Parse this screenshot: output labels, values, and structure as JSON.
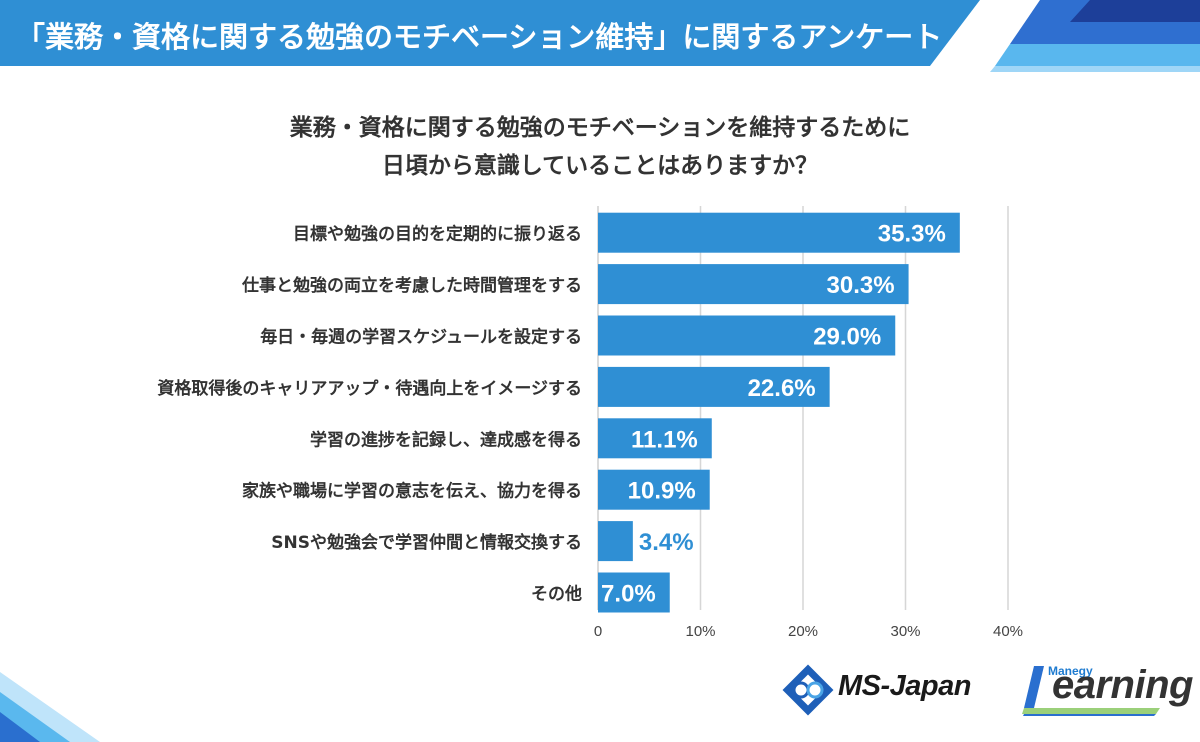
{
  "header": {
    "title": "「業務・資格に関する勉強のモチベーション維持」に関するアンケート"
  },
  "question": {
    "line1": "業務・資格に関する勉強のモチベーションを維持するために",
    "line2": "日頃から意識していることはありますか？"
  },
  "colors": {
    "bar": "#2f8fd4",
    "banner": "#2f8fd4",
    "label_inside": "#ffffff",
    "label_outside": "#2f8fd4"
  },
  "chart_data": {
    "type": "bar",
    "orientation": "horizontal",
    "categories": [
      "目標や勉強の目的を定期的に振り返る",
      "仕事と勉強の両立を考慮した時間管理をする",
      "毎日・毎週の学習スケジュールを設定する",
      "資格取得後のキャリアアップ・待遇向上をイメージする",
      "学習の進捗を記録し、達成感を得る",
      "家族や職場に学習の意志を伝え、協力を得る",
      "SNSや勉強会で学習仲間と情報交換する",
      "その他"
    ],
    "values": [
      35.3,
      30.3,
      29.0,
      22.6,
      11.1,
      10.9,
      3.4,
      7.0
    ],
    "value_labels": [
      "35.3%",
      "30.3%",
      "29.0%",
      "22.6%",
      "11.1%",
      "10.9%",
      "3.4%",
      "7.0%"
    ],
    "xlim": [
      0,
      40
    ],
    "xticks": [
      0,
      10,
      20,
      30,
      40
    ],
    "xtick_labels": [
      "0",
      "10%",
      "20%",
      "30%",
      "40%"
    ],
    "grid": true
  },
  "logos": {
    "ms_japan": "MS-Japan",
    "manegy": "Manegy",
    "learning": "Learning"
  }
}
